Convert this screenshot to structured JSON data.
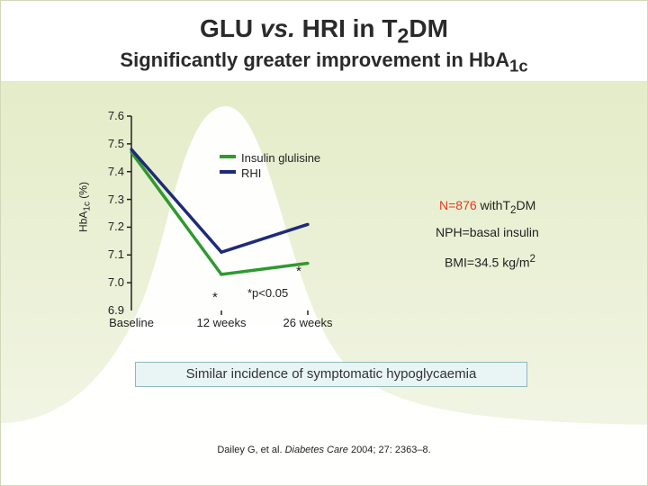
{
  "slide": {
    "title_pre": "GLU ",
    "title_vs": "vs.",
    "title_mid": " HRI in T",
    "title_sub": "2",
    "title_post": "DM",
    "subtitle_pre": "Significantly greater improvement in HbA",
    "subtitle_sub": "1c",
    "notes": {
      "n_pre": "N",
      "n_eq": "=876",
      "n_with": " with",
      "n_t": "T",
      "n_sub": "2",
      "n_dm": "DM",
      "nph": "NPH=basal insulin",
      "bmi_pre": "BMI=34.5 kg/m",
      "bmi_sup": "2",
      "pvalue": "*p<0.05",
      "asterisk_glu": "*",
      "asterisk_rhi": "*"
    },
    "hypo_box": "Similar incidence of symptomatic hypoglycaemia",
    "citation_pre": "Dailey G, et al. ",
    "citation_journal": "Diabetes Care",
    "citation_post": " 2004; 27: 2363–8.",
    "colors": {
      "glulisine": "#2e9a2e",
      "rhi": "#1f2a78",
      "background_curve": "#dde8bf",
      "note_red": "#e03c1e",
      "box_fill": "#e9f4f4"
    }
  },
  "chart_data": {
    "type": "line",
    "x": [
      "Baseline",
      "12 weeks",
      "26 weeks"
    ],
    "ylabel_pre": "HbA",
    "ylabel_sub": "1c",
    "ylabel_post": " (%)",
    "ylim": [
      6.9,
      7.6
    ],
    "yticks": [
      "7.6",
      "7.5",
      "7.4",
      "7.3",
      "7.2",
      "7.1",
      "7.0",
      "6.9"
    ],
    "grid": false,
    "legend_position": "top-right",
    "series": [
      {
        "name": "Insulin glulisine",
        "color": "#2e9a2e",
        "values": [
          7.47,
          7.03,
          7.07
        ]
      },
      {
        "name": "RHI",
        "color": "#1f2a78",
        "values": [
          7.48,
          7.11,
          7.21
        ]
      }
    ]
  }
}
